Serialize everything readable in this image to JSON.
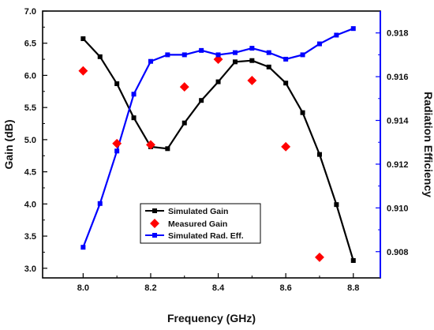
{
  "chart_data": {
    "type": "line",
    "xlabel": "Frequency (GHz)",
    "ylabel_left": "Gain (dB)",
    "ylabel_right": "Radiation Efficiency",
    "xlim": [
      7.88,
      8.88
    ],
    "ylim_left": [
      2.85,
      7.0
    ],
    "ylim_right": [
      0.9068,
      0.919
    ],
    "x_ticks": [
      "8.0",
      "8.2",
      "8.4",
      "8.6",
      "8.8"
    ],
    "y_left_ticks": [
      "3.0",
      "3.5",
      "4.0",
      "4.5",
      "5.0",
      "5.5",
      "6.0",
      "6.5",
      "7.0"
    ],
    "y_right_ticks": [
      "0.908",
      "0.910",
      "0.912",
      "0.914",
      "0.916",
      "0.918"
    ],
    "grid": false,
    "legend_position": "lower-center",
    "series": [
      {
        "name": "Simulated Gain",
        "axis": "left",
        "marker": "square",
        "color": "#000000",
        "x": [
          8.0,
          8.05,
          8.1,
          8.15,
          8.2,
          8.25,
          8.3,
          8.35,
          8.4,
          8.45,
          8.5,
          8.55,
          8.6,
          8.65,
          8.7,
          8.75,
          8.8
        ],
        "values": [
          6.57,
          6.29,
          5.87,
          5.34,
          4.89,
          4.86,
          5.26,
          5.61,
          5.9,
          6.21,
          6.23,
          6.13,
          5.88,
          5.42,
          4.77,
          3.99,
          3.12
        ]
      },
      {
        "name": "Measured Gain",
        "axis": "left",
        "marker": "diamond",
        "color": "#ff0000",
        "x": [
          8.0,
          8.1,
          8.2,
          8.3,
          8.4,
          8.5,
          8.6,
          8.7
        ],
        "values": [
          6.07,
          4.94,
          4.92,
          5.82,
          6.25,
          5.92,
          4.89,
          3.17
        ]
      },
      {
        "name": "Simulated Rad. Eff.",
        "axis": "right",
        "marker": "square",
        "color": "#0000ff",
        "x": [
          8.0,
          8.05,
          8.1,
          8.15,
          8.2,
          8.25,
          8.3,
          8.35,
          8.4,
          8.45,
          8.5,
          8.55,
          8.6,
          8.65,
          8.7,
          8.75,
          8.8
        ],
        "values": [
          0.9082,
          0.9102,
          0.9126,
          0.9152,
          0.9167,
          0.917,
          0.917,
          0.9172,
          0.917,
          0.9171,
          0.9173,
          0.9171,
          0.9168,
          0.917,
          0.9175,
          0.9179,
          0.9182
        ]
      }
    ]
  }
}
